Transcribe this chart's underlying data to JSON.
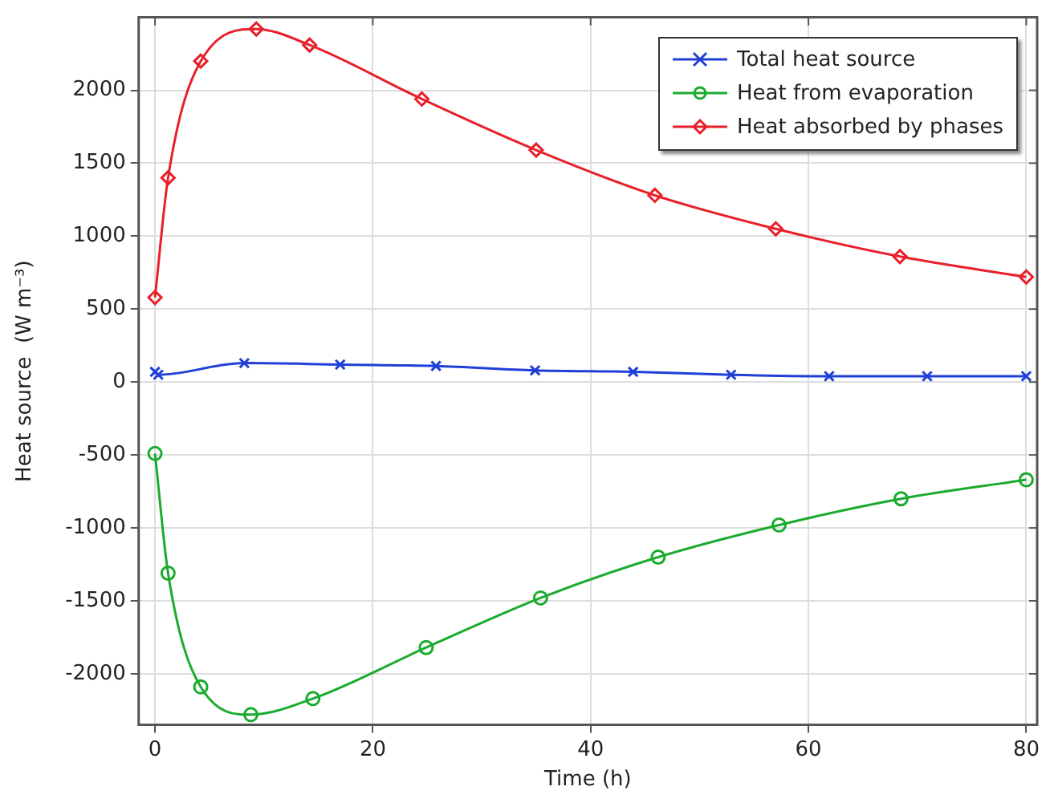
{
  "chart_data": {
    "type": "line",
    "xlabel": "Time (h)",
    "ylabel": "Heat source  (W m⁻³)",
    "xlim": [
      -1.5,
      81
    ],
    "xticks": [
      0,
      20,
      40,
      60,
      80
    ],
    "ylim": [
      -2350,
      2500
    ],
    "yticks": [
      -2000,
      -1500,
      -1000,
      -500,
      0,
      500,
      1000,
      1500,
      2000
    ],
    "grid": true,
    "legend": "top right",
    "line_style": "solid",
    "series": [
      {
        "name": "Total heat source",
        "color": "#1f3fd8",
        "marker": "cross",
        "x": [
          0,
          0.3,
          8.2,
          17,
          25.8,
          34.9,
          43.9,
          52.9,
          61.9,
          70.9,
          80
        ],
        "values": [
          70,
          50,
          130,
          120,
          110,
          80,
          70,
          50,
          40,
          40,
          40
        ]
      },
      {
        "name": "Heat from evaporation",
        "color": "#1aab2e",
        "marker": "circle",
        "x": [
          0,
          1.2,
          4.2,
          8.8,
          14.5,
          24.9,
          35.4,
          46.2,
          57.3,
          68.5,
          80
        ],
        "values": [
          -490,
          -1310,
          -2090,
          -2280,
          -2170,
          -1820,
          -1480,
          -1200,
          -980,
          -800,
          -670
        ]
      },
      {
        "name": "Heat absorbed by phases",
        "color": "#e8202a",
        "marker": "diamond",
        "x": [
          0,
          1.2,
          4.2,
          9.3,
          14.2,
          24.5,
          35,
          45.9,
          57,
          68.4,
          80
        ],
        "values": [
          580,
          1400,
          2200,
          2420,
          2310,
          1940,
          1590,
          1280,
          1050,
          860,
          720
        ]
      }
    ]
  }
}
